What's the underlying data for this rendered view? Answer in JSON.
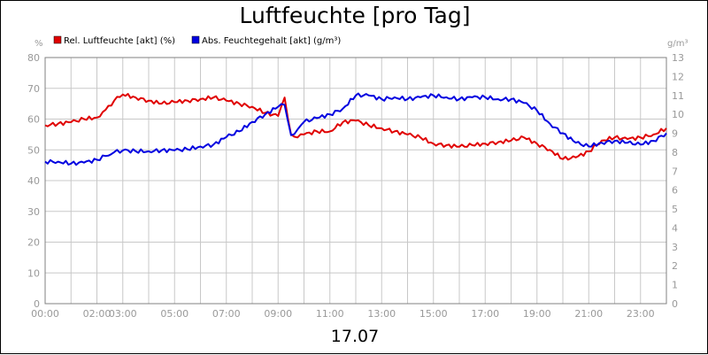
{
  "chart_data": {
    "type": "line",
    "title": "Luftfeuchte [pro Tag]",
    "xlabel": "17.07",
    "left_unit": "%",
    "right_unit": "g/m³",
    "y_left_lim": [
      0,
      80
    ],
    "y_right_lim": [
      0,
      13
    ],
    "x_hour_lim": [
      0,
      24
    ],
    "y_left_ticks": [
      "0",
      "10",
      "20",
      "30",
      "40",
      "50",
      "60",
      "70",
      "80"
    ],
    "y_right_ticks": [
      "0",
      "1",
      "2",
      "3",
      "4",
      "5",
      "6",
      "7",
      "8",
      "9",
      "10",
      "11",
      "12",
      "13"
    ],
    "x_ticks": [
      "00:00",
      "02:00",
      "03:00",
      "05:00",
      "07:00",
      "09:00",
      "11:00",
      "13:00",
      "15:00",
      "17:00",
      "19:00",
      "21:00",
      "23:00"
    ],
    "grid": true,
    "legend_position": "top-left",
    "series": [
      {
        "name": "Rel. Luftfeuchte [akt] (%)",
        "color": "#e00000",
        "axis": "left",
        "x": [
          "00:00",
          "00:30",
          "01:00",
          "01:30",
          "02:00",
          "02:20",
          "02:40",
          "03:00",
          "03:30",
          "04:00",
          "04:30",
          "05:00",
          "05:30",
          "06:00",
          "06:30",
          "07:00",
          "07:30",
          "08:00",
          "08:30",
          "09:00",
          "09:15",
          "09:30",
          "09:45",
          "10:00",
          "10:30",
          "11:00",
          "11:30",
          "12:00",
          "12:30",
          "13:00",
          "13:30",
          "14:00",
          "14:30",
          "15:00",
          "15:30",
          "16:00",
          "16:30",
          "17:00",
          "17:30",
          "18:00",
          "18:30",
          "19:00",
          "19:30",
          "20:00",
          "20:30",
          "21:00",
          "21:30",
          "22:00",
          "22:30",
          "23:00",
          "23:30",
          "24:00"
        ],
        "values": [
          58,
          58.5,
          59,
          60,
          60.5,
          63,
          66,
          68,
          67,
          66,
          65,
          65.5,
          66,
          66.5,
          67,
          66,
          65,
          64,
          62,
          61,
          67,
          55,
          54,
          55,
          56,
          56,
          59,
          59.5,
          58,
          57,
          56,
          55,
          54,
          52,
          51.5,
          51,
          51.5,
          52,
          52.5,
          53,
          54,
          52,
          50,
          47,
          47.5,
          49.5,
          53,
          54,
          53.5,
          54,
          55,
          57
        ]
      },
      {
        "name": "Abs. Feuchtegehalt [akt] (g/m³)",
        "color": "#0000e0",
        "axis": "right",
        "x": [
          "00:00",
          "00:30",
          "01:00",
          "01:30",
          "02:00",
          "02:20",
          "02:40",
          "03:00",
          "03:30",
          "04:00",
          "04:30",
          "05:00",
          "05:30",
          "06:00",
          "06:30",
          "07:00",
          "07:30",
          "08:00",
          "08:30",
          "09:00",
          "09:15",
          "09:30",
          "09:45",
          "10:00",
          "10:30",
          "11:00",
          "11:30",
          "12:00",
          "12:30",
          "13:00",
          "13:30",
          "14:00",
          "14:30",
          "15:00",
          "15:30",
          "16:00",
          "16:30",
          "17:00",
          "17:30",
          "18:00",
          "18:30",
          "19:00",
          "19:30",
          "20:00",
          "20:30",
          "21:00",
          "21:30",
          "22:00",
          "22:30",
          "23:00",
          "23:30",
          "24:00"
        ],
        "values": [
          7.5,
          7.5,
          7.4,
          7.45,
          7.6,
          7.8,
          8,
          8.1,
          8.05,
          8.05,
          8.1,
          8.1,
          8.15,
          8.3,
          8.4,
          8.8,
          9.1,
          9.6,
          10,
          10.4,
          10.5,
          8.9,
          9.2,
          9.6,
          9.8,
          10,
          10.3,
          11,
          11,
          10.8,
          10.9,
          10.8,
          10.9,
          11,
          10.9,
          10.8,
          10.9,
          10.9,
          10.8,
          10.8,
          10.6,
          10.2,
          9.5,
          9,
          8.5,
          8.3,
          8.5,
          8.6,
          8.5,
          8.4,
          8.6,
          9
        ]
      }
    ]
  }
}
